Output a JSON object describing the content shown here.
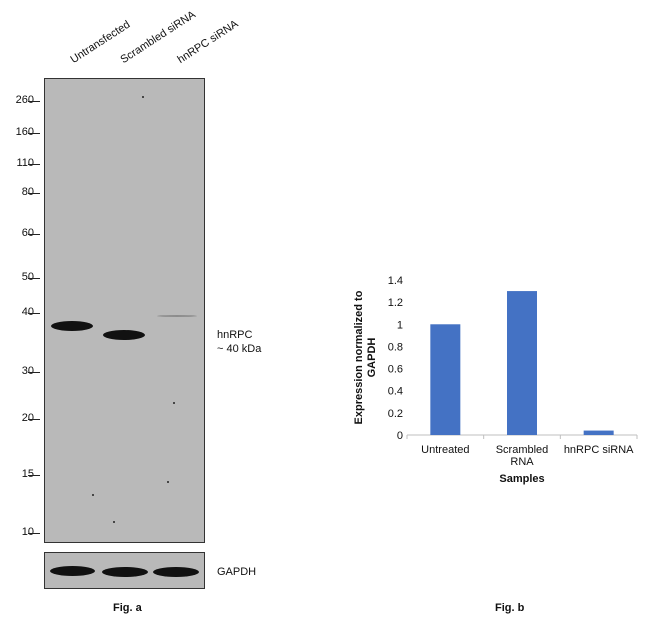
{
  "figure_a": {
    "lanes": [
      "Untransfected",
      "Scrambled siRNA",
      "hnRPC siRNA"
    ],
    "mw_markers": [
      "260",
      "160",
      "110",
      "80",
      "60",
      "50",
      "40",
      "30",
      "20",
      "15",
      "10"
    ],
    "target_label_line1": "hnRPC",
    "target_label_line2": "~ 40 kDa",
    "loading_control": "GAPDH",
    "caption": "Fig. a"
  },
  "figure_b": {
    "caption": "Fig. b"
  },
  "chart_data": {
    "type": "bar",
    "categories": [
      "Untreated",
      "Scrambled RNA",
      "hnRPC siRNA"
    ],
    "category_lines": [
      [
        "Untreated"
      ],
      [
        "Scrambled",
        "RNA"
      ],
      [
        "hnRPC siRNA"
      ]
    ],
    "values": [
      1.0,
      1.3,
      0.04
    ],
    "xlabel": "Samples",
    "ylabel_lines": [
      "Expression normalized to",
      "GAPDH"
    ],
    "ylim": [
      0,
      1.4
    ],
    "yticks": [
      "0",
      "0.2",
      "0.4",
      "0.6",
      "0.8",
      "1",
      "1.2",
      "1.4"
    ],
    "bar_color": "#4472c4",
    "grid": false
  }
}
